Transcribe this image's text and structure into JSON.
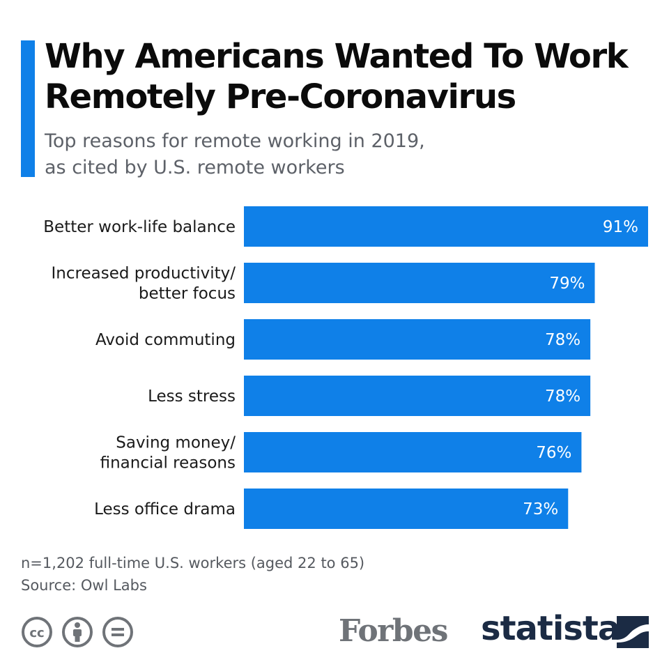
{
  "title": "Why Americans Wanted To Work Remotely Pre-Coronavirus",
  "title_lines": [
    "Why Americans Wanted To Work",
    "Remotely Pre-Coronavirus"
  ],
  "subtitle_lines": [
    "Top reasons for remote working in 2019,",
    "as cited by U.S. remote workers"
  ],
  "colors": {
    "accent": "#0f80e8",
    "bar": "#0f80e8",
    "bar_label": "#ffffff",
    "text": "#1a1a1a",
    "muted": "#5d6168",
    "brand_dark": "#1b2b44",
    "forbes_gray": "#6f7378"
  },
  "chart_data": {
    "type": "bar",
    "orientation": "horizontal",
    "categories": [
      [
        "Better work-life balance"
      ],
      [
        "Increased productivity/",
        "better focus"
      ],
      [
        "Avoid commuting"
      ],
      [
        "Less stress"
      ],
      [
        "Saving money/",
        "financial reasons"
      ],
      [
        "Less office drama"
      ]
    ],
    "values": [
      91,
      79,
      78,
      78,
      76,
      73
    ],
    "value_labels": [
      "91%",
      "79%",
      "78%",
      "78%",
      "76%",
      "73%"
    ],
    "xlim": [
      0,
      91
    ],
    "grid": false,
    "legend": "none"
  },
  "notes": [
    "n=1,202 full-time U.S. workers (aged 22 to 65)",
    "Source: Owl Labs"
  ],
  "footer": {
    "license_icons": [
      "cc-icon",
      "by-attribution-icon",
      "nd-equals-icon"
    ],
    "forbes_logo_text": "Forbes",
    "statista_logo_text": "statista",
    "statista_icon": "statista-mark-icon"
  }
}
